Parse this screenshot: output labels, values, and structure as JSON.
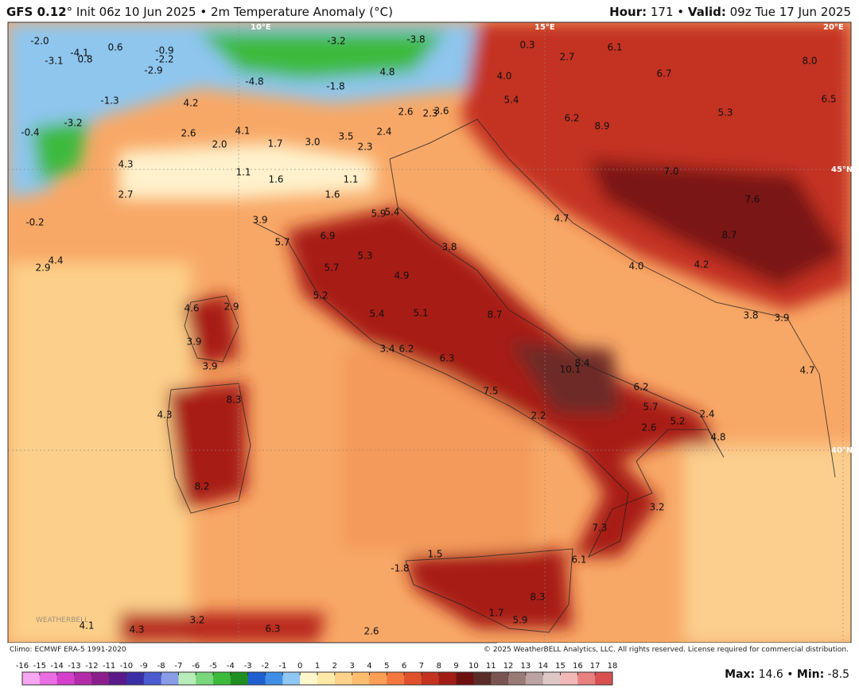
{
  "header": {
    "model": "GFS 0.12",
    "degree": "°",
    "init": "Init 06z 10 Jun 2025 • 2m Temperature Anomaly (°C)",
    "hour_label": "Hour:",
    "hour": "171 •",
    "valid_label": "Valid:",
    "valid": "09z Tue 17 Jun 2025"
  },
  "footer": {
    "climo": "Climo: ECMWF ERA-5 1991-2020",
    "copyright": "© 2025 WeatherBELL Analytics, LLC. All rights reserved. License required for commercial distribution.",
    "max_label": "Max:",
    "max": "14.6 •",
    "min_label": "Min:",
    "min": "-8.5",
    "logo": "WEATHERBELL"
  },
  "grid_labels": [
    "10°E",
    "15°E",
    "20°E",
    "45°N",
    "40°N"
  ],
  "map_labels": [
    "-2.0",
    "-3.1",
    "-4.1",
    "0.8",
    "0.6",
    "-0.9",
    "-2.2",
    "-2.9",
    "-3.2",
    "-3.8",
    "0.3",
    "6.1",
    "2.7",
    "8.0",
    "6.7",
    "-4.8",
    "-1.8",
    "4.8",
    "4.0",
    "-1.3",
    "4.2",
    "6.5",
    "5.4",
    "2.6",
    "2.3",
    "3.6",
    "5.3",
    "-3.2",
    "6.2",
    "8.9",
    "-0.4",
    "2.6",
    "4.1",
    "3.0",
    "3.5",
    "2.4",
    "2.0",
    "1.7",
    "2.3",
    "4.3",
    "1.1",
    "1.6",
    "1.1",
    "7.0",
    "2.7",
    "1.6",
    "7.6",
    "-0.2",
    "5.9",
    "5.4",
    "4.7",
    "3.9",
    "6.9",
    "8.7",
    "5.7",
    "4.4",
    "2.9",
    "5.3",
    "3.8",
    "4.2",
    "5.7",
    "4.9",
    "4.0",
    "5.2",
    "4.6",
    "2.9",
    "5.4",
    "5.1",
    "8.7",
    "3.8",
    "3.9",
    "3.9",
    "3.4",
    "6.2",
    "6.3",
    "8.4",
    "10.1",
    "3.9",
    "4.7",
    "6.2",
    "7.5",
    "8.3",
    "5.7",
    "4.3",
    "2.2",
    "5.2",
    "2.4",
    "2.6",
    "4.8",
    "8.2",
    "3.2",
    "7.3",
    "1.5",
    "6.1",
    "-1.8",
    "8.3",
    "1.7",
    "5.9",
    "3.2",
    "6.3",
    "2.6",
    "4.3",
    "4.1"
  ],
  "colorbar": {
    "ticks": [
      -16,
      -15,
      -14,
      -13,
      -12,
      -11,
      -10,
      -9,
      -8,
      -7,
      -6,
      -5,
      -4,
      -3,
      -2,
      -1,
      0,
      1,
      2,
      3,
      4,
      5,
      6,
      7,
      8,
      9,
      10,
      11,
      12,
      13,
      14,
      15,
      16,
      17,
      18
    ],
    "colors": [
      "#f7a6f0",
      "#ea6ee2",
      "#d43fcb",
      "#b22ba8",
      "#8a1f8c",
      "#5a1a8a",
      "#3a2fa6",
      "#4a5cd0",
      "#8a9ce6",
      "#b8ecb8",
      "#7ad67a",
      "#3cba3c",
      "#1f8f1f",
      "#1f5fcf",
      "#3f8fe6",
      "#8fc6f2",
      "#fff7cc",
      "#ffe9a8",
      "#ffd38a",
      "#ffbd6e",
      "#ff9e55",
      "#f4783e",
      "#e0502c",
      "#c43220",
      "#a11c14",
      "#6e1010",
      "#5a2c28",
      "#7a5450",
      "#9a7a76",
      "#bca2a0",
      "#dec8c6",
      "#f2b8b8",
      "#e88080",
      "#d85050"
    ]
  }
}
